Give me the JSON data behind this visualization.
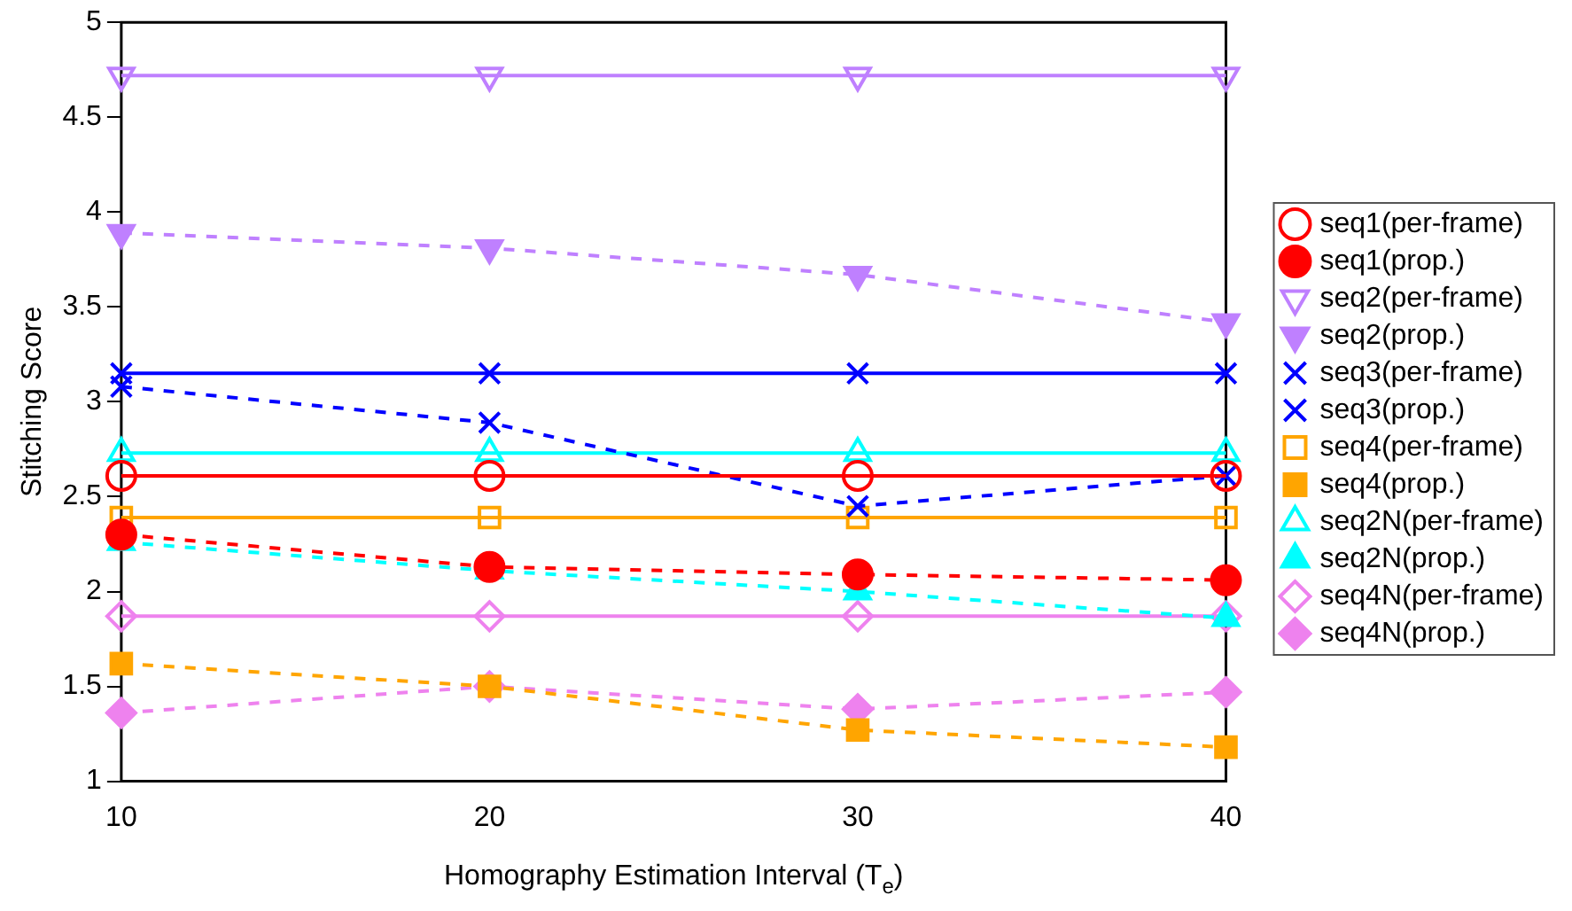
{
  "chart_data": {
    "type": "line",
    "xlabel": "Homography Estimation Interval (T$_{e}$)",
    "ylabel": "Stitching Score",
    "x": [
      10,
      20,
      30,
      40
    ],
    "xlim": [
      10,
      40
    ],
    "xticks": [
      10,
      20,
      30,
      40
    ],
    "ylim": [
      1,
      5
    ],
    "yticks": [
      1,
      1.5,
      2,
      2.5,
      3,
      3.5,
      4,
      4.5,
      5
    ],
    "grid": false,
    "legend": "right",
    "series": [
      {
        "name": "seq1(per-frame)",
        "color": "#ff0000",
        "marker": "circle",
        "line_style": "solid",
        "values": [
          2.61,
          2.61,
          2.61,
          2.61
        ]
      },
      {
        "name": "seq1(prop.)",
        "color": "#ff0000",
        "marker": "circle",
        "line_style": "dashed",
        "values": [
          2.3,
          2.13,
          2.09,
          2.06
        ]
      },
      {
        "name": "seq2(per-frame)",
        "color": "#bf80ff",
        "marker": "triangle-down",
        "line_style": "solid",
        "values": [
          4.72,
          4.72,
          4.72,
          4.72
        ]
      },
      {
        "name": "seq2(prop.)",
        "color": "#bf80ff",
        "marker": "triangle-down",
        "line_style": "dashed",
        "values": [
          3.89,
          3.81,
          3.67,
          3.42
        ]
      },
      {
        "name": "seq3(per-frame)",
        "color": "#0000ff",
        "marker": "cross",
        "line_style": "solid",
        "values": [
          3.15,
          3.15,
          3.15,
          3.15
        ]
      },
      {
        "name": "seq3(prop.)",
        "color": "#0000ff",
        "marker": "cross",
        "line_style": "dashed",
        "values": [
          3.08,
          2.89,
          2.45,
          2.61
        ]
      },
      {
        "name": "seq4(per-frame)",
        "color": "#ffa500",
        "marker": "square",
        "line_style": "solid",
        "values": [
          2.39,
          2.39,
          2.39,
          2.39
        ]
      },
      {
        "name": "seq4(prop.)",
        "color": "#ffa500",
        "marker": "square",
        "line_style": "dashed",
        "values": [
          1.62,
          1.5,
          1.27,
          1.18
        ]
      },
      {
        "name": "seq2N(per-frame)",
        "color": "#00ffff",
        "marker": "triangle",
        "line_style": "solid",
        "values": [
          2.73,
          2.73,
          2.73,
          2.73
        ]
      },
      {
        "name": "seq2N(prop.)",
        "color": "#00ffff",
        "marker": "triangle",
        "line_style": "dashed",
        "values": [
          2.26,
          2.11,
          2.0,
          1.86
        ]
      },
      {
        "name": "seq4N(per-frame)",
        "color": "#ee82ee",
        "marker": "diamond",
        "line_style": "solid",
        "values": [
          1.87,
          1.87,
          1.87,
          1.87
        ]
      },
      {
        "name": "seq4N(prop.)",
        "color": "#ee82ee",
        "marker": "diamond",
        "line_style": "dashed",
        "values": [
          1.36,
          1.5,
          1.38,
          1.47
        ]
      }
    ]
  }
}
